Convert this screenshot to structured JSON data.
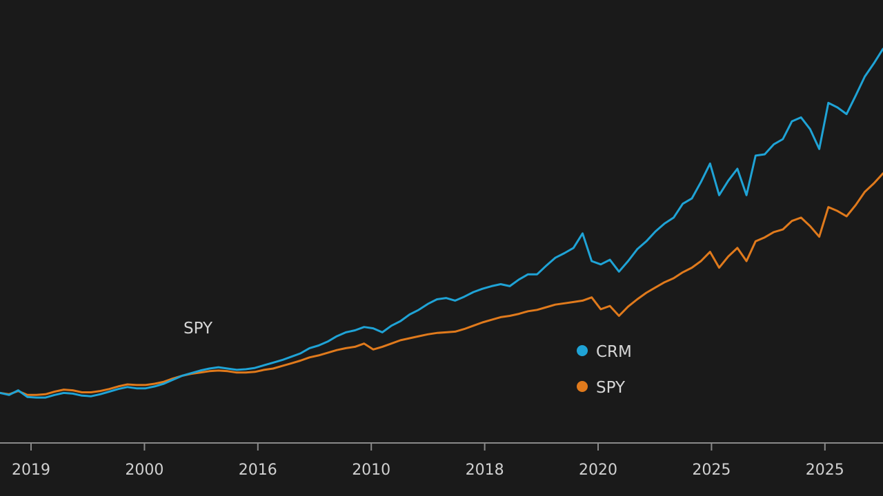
{
  "chart_data": {
    "type": "line",
    "title": "",
    "xlabel": "",
    "ylabel": "",
    "x_tick_labels": [
      "2019",
      "2000",
      "2016",
      "2010",
      "2018",
      "2020",
      "2025",
      "2025"
    ],
    "annotation": "SPY",
    "grid": false,
    "legend_position": "center-right",
    "colors": {
      "background": "#1a1a1a",
      "axis": "#8a8a8a",
      "text": "#d0d0d0"
    },
    "series": [
      {
        "name": "CRM",
        "color": "#1fa3d6",
        "values": [
          100,
          97,
          104,
          94,
          93,
          93,
          97,
          100,
          99,
          96,
          95,
          98,
          102,
          106,
          109,
          107,
          107,
          110,
          114,
          120,
          126,
          130,
          134,
          137,
          139,
          137,
          135,
          136,
          138,
          142,
          146,
          150,
          155,
          160,
          168,
          172,
          178,
          186,
          192,
          195,
          200,
          198,
          192,
          202,
          209,
          219,
          226,
          235,
          242,
          244,
          240,
          246,
          253,
          258,
          262,
          265,
          262,
          272,
          280,
          280,
          293,
          305,
          312,
          320,
          342,
          300,
          295,
          302,
          284,
          300,
          318,
          330,
          345,
          357,
          366,
          387,
          395,
          420,
          448,
          400,
          422,
          440,
          400,
          460,
          462,
          477,
          485,
          512,
          518,
          500,
          470,
          540,
          533,
          523,
          551,
          580,
          600,
          622
        ]
      },
      {
        "name": "SPY",
        "color": "#e07a1c",
        "values": [
          100,
          98,
          103,
          97,
          97,
          98,
          102,
          105,
          104,
          101,
          101,
          103,
          106,
          110,
          113,
          112,
          112,
          114,
          117,
          122,
          126,
          129,
          131,
          133,
          134,
          133,
          131,
          131,
          132,
          135,
          137,
          141,
          145,
          149,
          154,
          157,
          161,
          165,
          168,
          170,
          175,
          166,
          170,
          175,
          180,
          183,
          186,
          189,
          191,
          192,
          193,
          197,
          202,
          207,
          211,
          215,
          217,
          220,
          224,
          226,
          230,
          234,
          236,
          238,
          240,
          245,
          227,
          232,
          217,
          231,
          242,
          252,
          260,
          268,
          274,
          283,
          290,
          300,
          314,
          290,
          307,
          320,
          300,
          330,
          336,
          344,
          348,
          361,
          366,
          353,
          337,
          382,
          376,
          368,
          385,
          405,
          418,
          433
        ]
      }
    ]
  },
  "legend": {
    "items": [
      {
        "label": "CRM",
        "color": "#1fa3d6"
      },
      {
        "label": "SPY",
        "color": "#e07a1c"
      }
    ]
  }
}
